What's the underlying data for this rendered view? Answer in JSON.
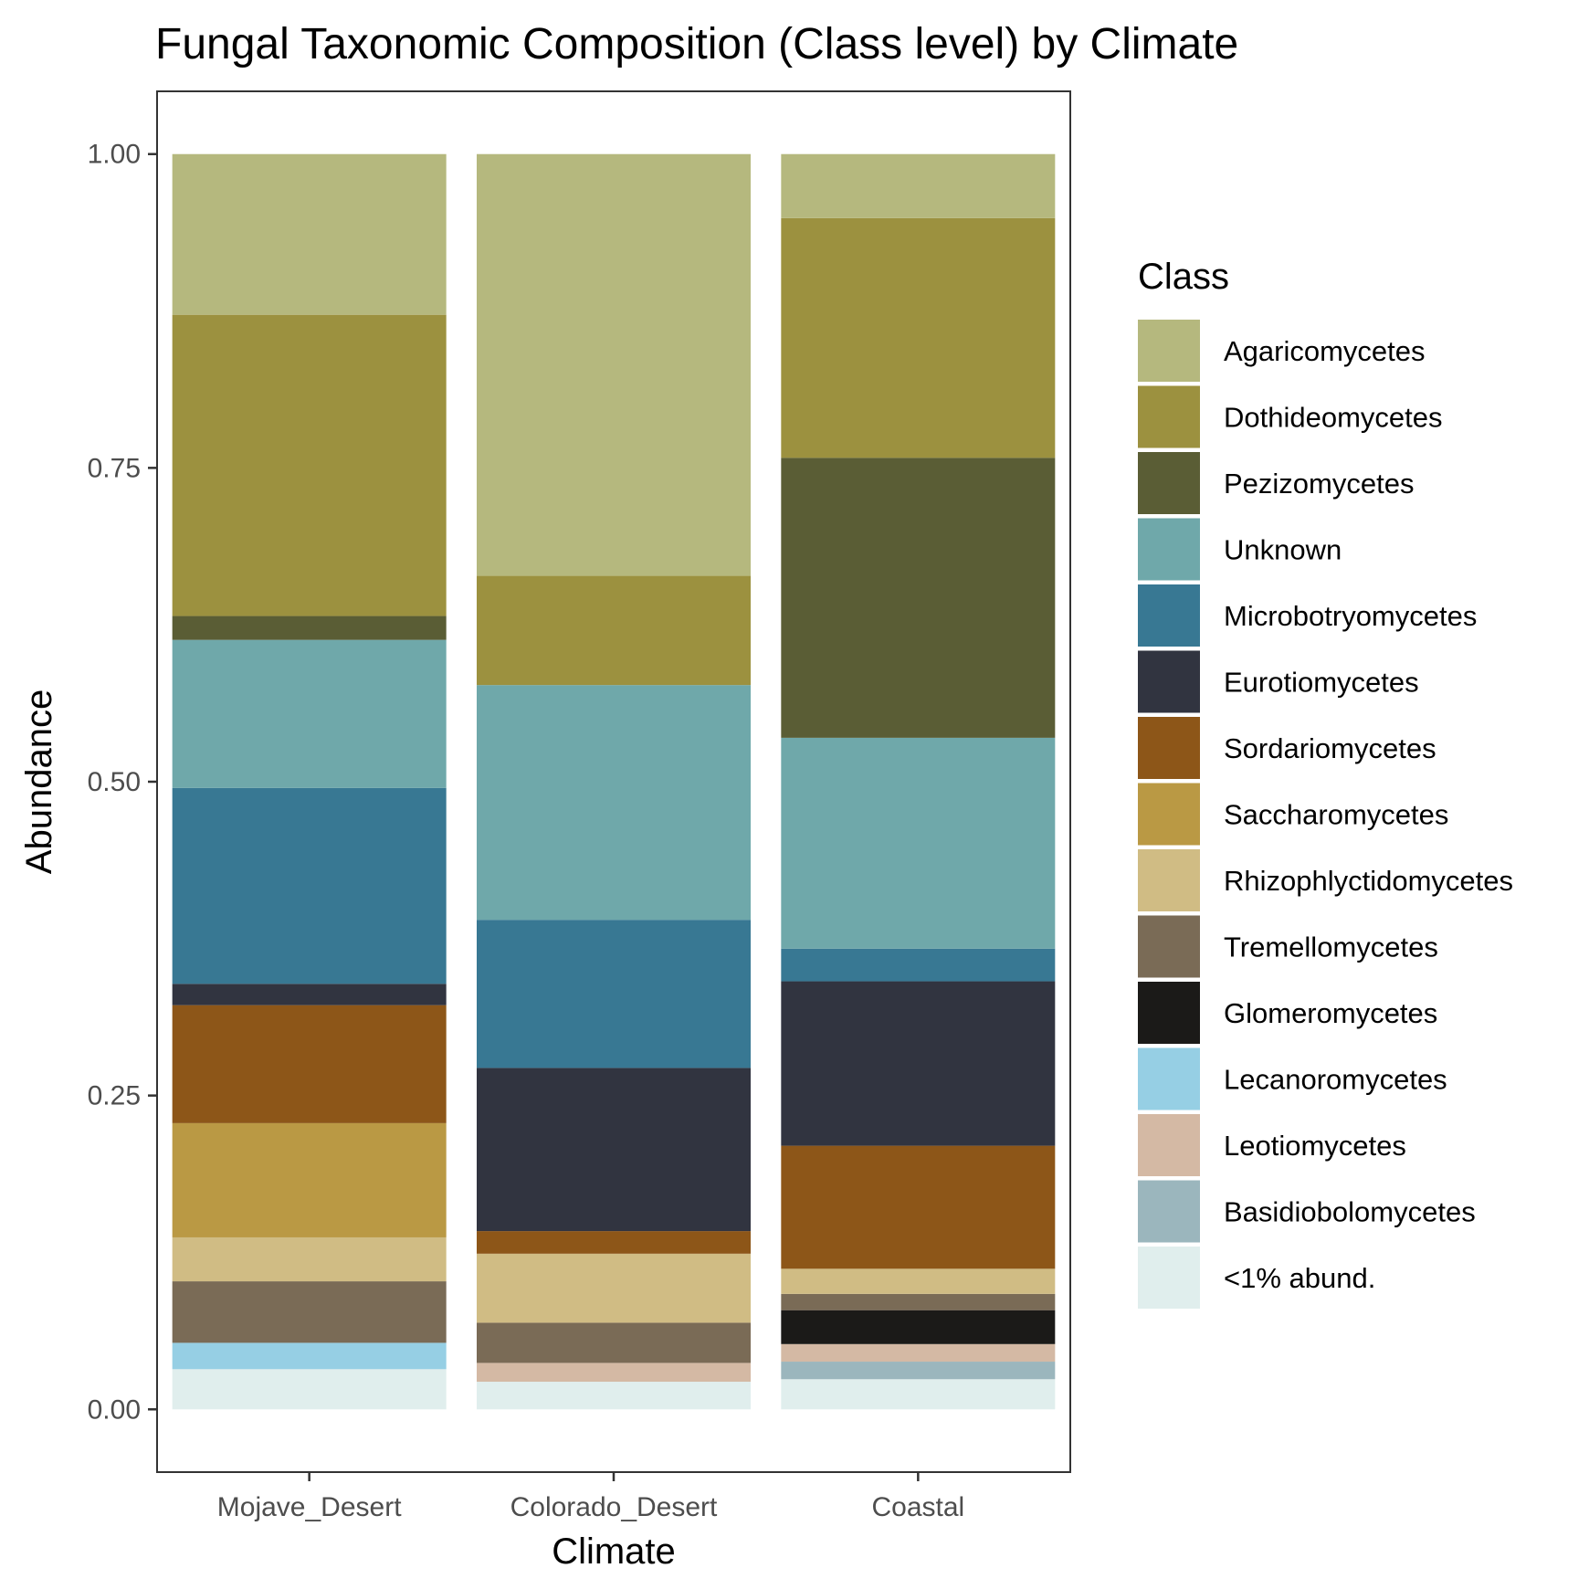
{
  "chart_data": {
    "type": "bar",
    "stacked": true,
    "title": "Fungal Taxonomic Composition (Class level) by Climate",
    "xlabel": "Climate",
    "ylabel": "Abundance",
    "ylim": [
      -0.05,
      1.05
    ],
    "yticks": [
      "0.00",
      "0.25",
      "0.50",
      "0.75",
      "1.00"
    ],
    "ytick_values": [
      0,
      0.25,
      0.5,
      0.75,
      1.0
    ],
    "grid": false,
    "legend_title": "Class",
    "legend_position": "right",
    "categories": [
      "Mojave_Desert",
      "Colorado_Desert",
      "Coastal"
    ],
    "series": [
      {
        "name": "Agaricomycetes",
        "color": "#b5b87e",
        "values": [
          0.128,
          0.336,
          0.051
        ]
      },
      {
        "name": "Dothideomycetes",
        "color": "#9c913f",
        "values": [
          0.24,
          0.087,
          0.191
        ]
      },
      {
        "name": "Pezizomycetes",
        "color": "#5a5d35",
        "values": [
          0.019,
          0.0,
          0.223
        ]
      },
      {
        "name": "Unknown",
        "color": "#6fa8aa",
        "values": [
          0.118,
          0.187,
          0.168
        ]
      },
      {
        "name": "Microbotryomycetes",
        "color": "#387893",
        "values": [
          0.156,
          0.118,
          0.026
        ]
      },
      {
        "name": "Eurotiomycetes",
        "color": "#313440",
        "values": [
          0.017,
          0.13,
          0.131
        ]
      },
      {
        "name": "Sordariomycetes",
        "color": "#8d5618",
        "values": [
          0.094,
          0.018,
          0.098
        ]
      },
      {
        "name": "Saccharomycetes",
        "color": "#ba9944",
        "values": [
          0.091,
          0.0,
          0.0
        ]
      },
      {
        "name": "Rhizophlyctidomycetes",
        "color": "#d0bc84",
        "values": [
          0.035,
          0.055,
          0.02
        ]
      },
      {
        "name": "Tremellomycetes",
        "color": "#7a6b56",
        "values": [
          0.049,
          0.032,
          0.013
        ]
      },
      {
        "name": "Glomeromycetes",
        "color": "#1b1a18",
        "values": [
          0.0,
          0.0,
          0.027
        ]
      },
      {
        "name": "Lecanoromycetes",
        "color": "#96cfe4",
        "values": [
          0.021,
          0.0,
          0.0
        ]
      },
      {
        "name": "Leotiomycetes",
        "color": "#d4b9a4",
        "values": [
          0.0,
          0.015,
          0.014
        ]
      },
      {
        "name": "Basidiobolomycetes",
        "color": "#9bb6bd",
        "values": [
          0.0,
          0.0,
          0.014
        ]
      },
      {
        "name": "<1% abund.",
        "color": "#e0eeed",
        "values": [
          0.032,
          0.022,
          0.024
        ]
      }
    ]
  }
}
